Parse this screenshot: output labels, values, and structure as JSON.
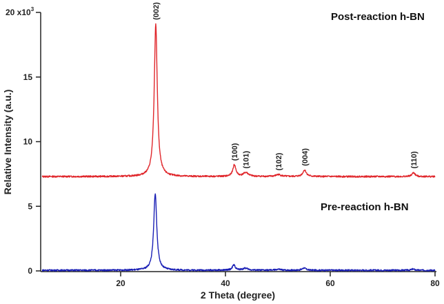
{
  "chart_data": {
    "type": "line",
    "title": "",
    "xlabel": "2 Theta (degree)",
    "ylabel": "Relative Intensity (a.u.)",
    "xlim": [
      5,
      80
    ],
    "ylim": [
      0,
      20000
    ],
    "y_multiplier_label": "x10",
    "y_multiplier_exp": "3",
    "x_ticks": [
      20,
      40,
      60,
      80
    ],
    "y_ticks": [
      0,
      5,
      10,
      15,
      20
    ],
    "y_tick_labels": [
      "0",
      "5",
      "10",
      "15",
      "20"
    ],
    "grid": false,
    "legend_position": "inline labels at right",
    "series": [
      {
        "name": "Post-reaction h-BN",
        "color": "#e0262b",
        "baseline": 7300,
        "peaks": [
          {
            "label": "(002)",
            "x": 26.7,
            "y": 19100,
            "width": 0.35
          },
          {
            "label": "(100)",
            "x": 41.7,
            "y": 8200,
            "width": 0.35
          },
          {
            "label": "(101)",
            "x": 43.9,
            "y": 7600,
            "width": 0.6
          },
          {
            "label": "(102)",
            "x": 50.1,
            "y": 7450,
            "width": 0.6
          },
          {
            "label": "(004)",
            "x": 55.1,
            "y": 7800,
            "width": 0.4
          },
          {
            "label": "(110)",
            "x": 75.9,
            "y": 7600,
            "width": 0.35
          }
        ]
      },
      {
        "name": "Pre-reaction h-BN",
        "color": "#1a1fb5",
        "baseline": 50,
        "peaks": [
          {
            "label": "(002)",
            "x": 26.6,
            "y": 6000,
            "width": 0.35
          },
          {
            "label": "(100)",
            "x": 41.6,
            "y": 450,
            "width": 0.35
          },
          {
            "label": "(101)",
            "x": 43.8,
            "y": 200,
            "width": 0.6
          },
          {
            "label": "(102)",
            "x": 50.1,
            "y": 120,
            "width": 0.6
          },
          {
            "label": "(004)",
            "x": 55.0,
            "y": 230,
            "width": 0.4
          },
          {
            "label": "(110)",
            "x": 75.8,
            "y": 140,
            "width": 0.35
          }
        ]
      }
    ],
    "annotations": [
      "(002)",
      "(100)",
      "(101)",
      "(102)",
      "(004)",
      "(110)"
    ]
  },
  "labels": {
    "post": "Post-reaction h-BN",
    "pre": "Pre-reaction h-BN",
    "xlabel": "2 Theta (degree)",
    "ylabel": "Relative Intensity (a.u.)",
    "y_top_prefix": "20 x10",
    "y_top_exp": "3"
  }
}
